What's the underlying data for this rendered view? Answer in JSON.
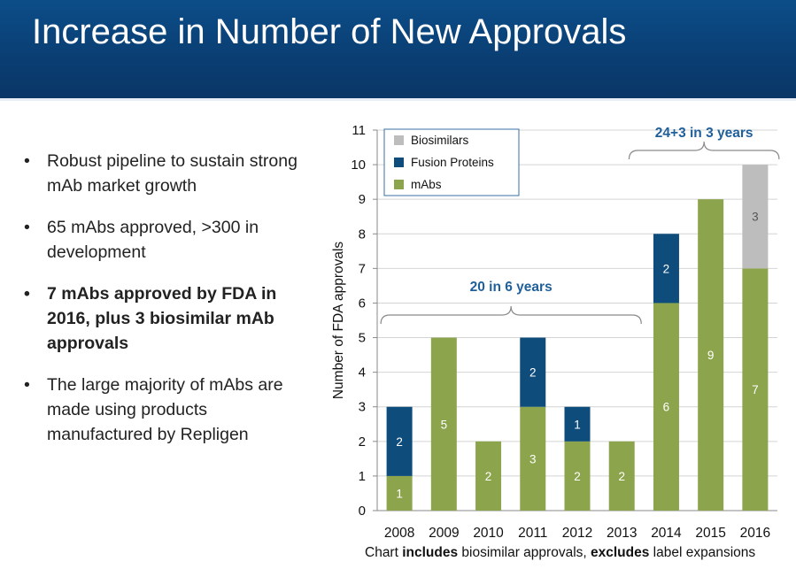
{
  "slide": {
    "title": "Increase in Number of New Approvals",
    "bullets": [
      {
        "text": "Robust pipeline to sustain strong mAb market growth",
        "bold": false
      },
      {
        "text": "65 mAbs approved, >300 in development",
        "bold": false
      },
      {
        "text": "7 mAbs approved by FDA in 2016, plus 3 biosimilar mAb approvals",
        "bold": true
      },
      {
        "text": "The large majority of mAbs are made using products manufactured by Repligen",
        "bold": false
      }
    ],
    "footnote": {
      "part1": "Chart ",
      "part2": "includes",
      "part3": " biosimilar approvals, ",
      "part4": "excludes",
      "part5": " label expansions"
    }
  },
  "colors": {
    "header": "#0b4279",
    "mAbs": "#8ca44c",
    "fusion": "#0e4c7c",
    "biosimilars": "#bdbdbd",
    "annotation": "#1f5f9a"
  },
  "chart_data": {
    "type": "bar",
    "stacked": true,
    "categories": [
      "2008",
      "2009",
      "2010",
      "2011",
      "2012",
      "2013",
      "2014",
      "2015",
      "2016"
    ],
    "series": [
      {
        "name": "mAbs",
        "values": [
          1,
          5,
          2,
          3,
          2,
          2,
          6,
          9,
          7
        ]
      },
      {
        "name": "Fusion Proteins",
        "values": [
          2,
          0,
          0,
          2,
          1,
          0,
          2,
          0,
          0
        ]
      },
      {
        "name": "Biosimilars",
        "values": [
          0,
          0,
          0,
          0,
          0,
          0,
          0,
          0,
          3
        ]
      }
    ],
    "ylabel": "Number of FDA approvals",
    "ylim": [
      0,
      11
    ],
    "yticks": [
      0,
      1,
      2,
      3,
      4,
      5,
      6,
      7,
      8,
      9,
      10,
      11
    ],
    "grid": true,
    "legend": "top-left",
    "annotations": [
      {
        "text": "20 in 6 years",
        "from": "2008",
        "to": "2013"
      },
      {
        "text": "24+3 in 3 years",
        "from": "2014",
        "to": "2016"
      }
    ]
  }
}
